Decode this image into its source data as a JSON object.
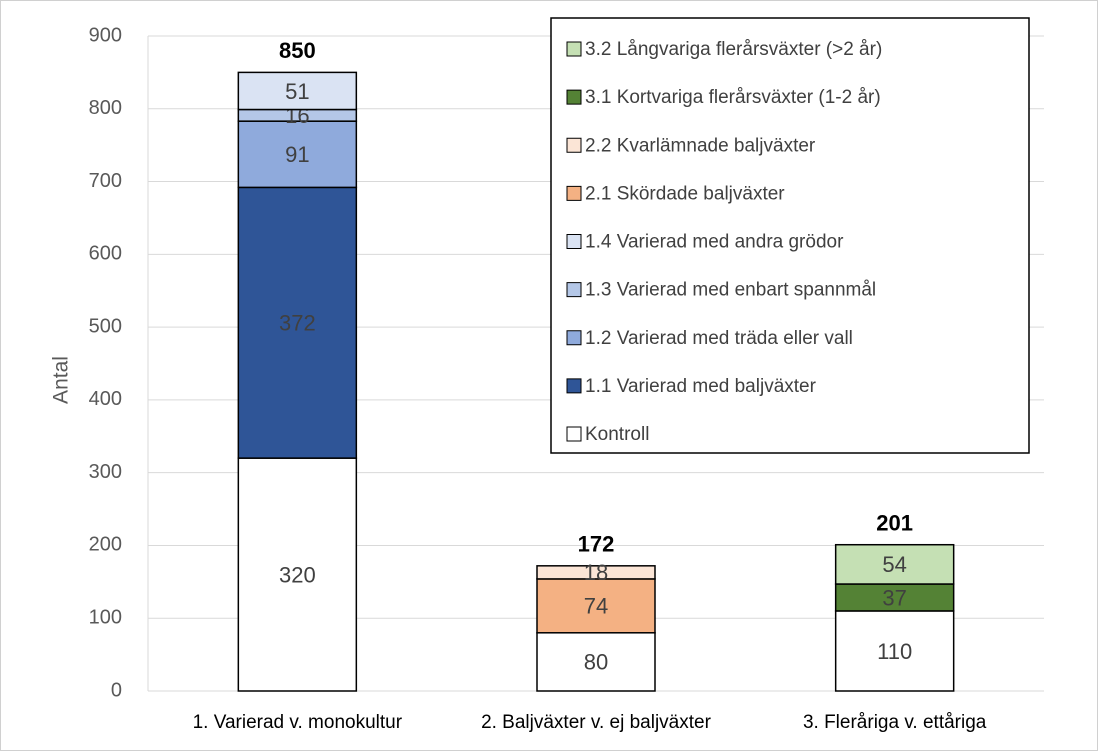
{
  "chart_data": {
    "type": "stacked_bar",
    "y_label": "Antal",
    "categories": [
      "1. Varierad v. monokultur",
      "2. Baljväxter v. ej baljväxter",
      "3. Fleråriga v. ettåriga"
    ],
    "series": [
      {
        "name": "Kontroll",
        "color": "#ffffff",
        "values": [
          320,
          80,
          110
        ]
      },
      {
        "name": "1.1 Varierad med baljväxter",
        "color": "#2f5597",
        "values": [
          372,
          null,
          null
        ]
      },
      {
        "name": "1.2 Varierad med träda eller vall",
        "color": "#8faadc",
        "values": [
          91,
          null,
          null
        ]
      },
      {
        "name": "1.3 Varierad med enbart spannmål",
        "color": "#b4c7e7",
        "values": [
          16,
          null,
          null
        ]
      },
      {
        "name": "1.4 Varierad med andra grödor",
        "color": "#dae3f3",
        "values": [
          51,
          null,
          null
        ]
      },
      {
        "name": "2.1 Skördade baljväxter",
        "color": "#f4b183",
        "values": [
          null,
          74,
          null
        ]
      },
      {
        "name": "2.2 Kvarlämnade baljväxter",
        "color": "#fbe5d6",
        "values": [
          null,
          18,
          null
        ]
      },
      {
        "name": "3.1 Kortvariga flerårsväxter (1-2 år)",
        "color": "#548235",
        "values": [
          null,
          null,
          37
        ]
      },
      {
        "name": "3.2 Långvariga flerårsväxter (>2 år)",
        "color": "#c5e0b4",
        "values": [
          null,
          null,
          54
        ]
      }
    ],
    "totals": [
      850,
      172,
      201
    ],
    "ylim": [
      0,
      900
    ],
    "yticks": [
      0,
      100,
      200,
      300,
      400,
      500,
      600,
      700,
      800,
      900
    ],
    "grid": true,
    "legend": "upper right"
  }
}
